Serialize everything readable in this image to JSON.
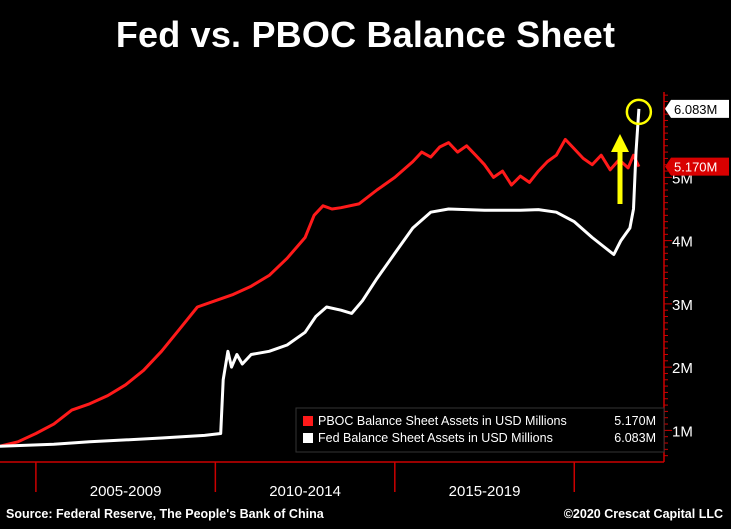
{
  "title": "Fed vs. PBOC Balance Sheet",
  "footer": {
    "source": "Source: Federal Reserve, The People's Bank of China",
    "copyright": "©2020 Crescat Capital LLC"
  },
  "colors": {
    "pboc": "#ff1a1a",
    "fed": "#ffffff",
    "annotation": "#ffff00",
    "axis": "#cc0000"
  },
  "chart_data": {
    "type": "line",
    "title": "Fed vs. PBOC Balance Sheet",
    "xlabel": "",
    "ylabel": "",
    "xlim": [
      2002.5,
      2021.0
    ],
    "ylim": [
      0.5,
      6.35
    ],
    "y_unit": "M",
    "y_ticks": [
      {
        "value": 1,
        "label": "1M"
      },
      {
        "value": 2,
        "label": "2M"
      },
      {
        "value": 3,
        "label": "3M"
      },
      {
        "value": 4,
        "label": "4M"
      },
      {
        "value": 5,
        "label": "5M"
      }
    ],
    "x_tick_positions": [
      2003.5,
      2008.5,
      2013.5,
      2018.5
    ],
    "x_period_labels": [
      {
        "center": 2006.0,
        "label": "2005-2009"
      },
      {
        "center": 2011.0,
        "label": "2010-2014"
      },
      {
        "center": 2016.0,
        "label": "2015-2019"
      }
    ],
    "last_value_flags": [
      {
        "series": "fed",
        "value": 6.083,
        "label": "6.083M"
      },
      {
        "series": "pboc",
        "value": 5.17,
        "label": "5.170M"
      }
    ],
    "legend_position": "bottom-right",
    "series": [
      {
        "key": "pboc",
        "name": "PBOC Balance Sheet Assets in USD Millions",
        "last_label": "5.170M",
        "color": "#ff1a1a",
        "x": [
          2002.5,
          2003.0,
          2003.5,
          2004.0,
          2004.5,
          2005.0,
          2005.5,
          2006.0,
          2006.5,
          2007.0,
          2007.5,
          2008.0,
          2008.5,
          2009.0,
          2009.5,
          2010.0,
          2010.5,
          2011.0,
          2011.25,
          2011.5,
          2011.75,
          2012.0,
          2012.5,
          2013.0,
          2013.5,
          2014.0,
          2014.25,
          2014.5,
          2014.75,
          2015.0,
          2015.25,
          2015.5,
          2015.75,
          2016.0,
          2016.25,
          2016.5,
          2016.75,
          2017.0,
          2017.25,
          2017.5,
          2017.75,
          2018.0,
          2018.25,
          2018.5,
          2018.75,
          2019.0,
          2019.25,
          2019.5,
          2019.75,
          2020.0,
          2020.15,
          2020.3
        ],
        "values": [
          0.75,
          0.82,
          0.95,
          1.1,
          1.32,
          1.42,
          1.55,
          1.72,
          1.95,
          2.25,
          2.6,
          2.95,
          3.05,
          3.15,
          3.28,
          3.45,
          3.72,
          4.05,
          4.4,
          4.55,
          4.5,
          4.52,
          4.58,
          4.8,
          5.0,
          5.25,
          5.4,
          5.32,
          5.48,
          5.55,
          5.4,
          5.5,
          5.35,
          5.2,
          5.0,
          5.1,
          4.88,
          5.02,
          4.92,
          5.1,
          5.25,
          5.35,
          5.6,
          5.45,
          5.3,
          5.2,
          5.35,
          5.12,
          5.28,
          5.15,
          5.35,
          5.17
        ]
      },
      {
        "key": "fed",
        "name": "Fed Balance Sheet Assets in USD Millions",
        "last_label": "6.083M",
        "color": "#ffffff",
        "x": [
          2002.5,
          2004.0,
          2005.0,
          2006.0,
          2007.0,
          2008.2,
          2008.65,
          2008.72,
          2008.85,
          2008.95,
          2009.1,
          2009.25,
          2009.5,
          2010.0,
          2010.5,
          2011.0,
          2011.3,
          2011.6,
          2012.0,
          2012.3,
          2012.6,
          2013.0,
          2013.5,
          2014.0,
          2014.5,
          2015.0,
          2016.0,
          2017.0,
          2017.5,
          2018.0,
          2018.5,
          2019.0,
          2019.6,
          2019.8,
          2019.95,
          2020.05,
          2020.15,
          2020.22,
          2020.3
        ],
        "values": [
          0.75,
          0.78,
          0.82,
          0.85,
          0.88,
          0.92,
          0.95,
          1.8,
          2.25,
          2.0,
          2.2,
          2.05,
          2.2,
          2.25,
          2.35,
          2.55,
          2.8,
          2.95,
          2.9,
          2.85,
          3.05,
          3.4,
          3.8,
          4.2,
          4.45,
          4.5,
          4.48,
          4.48,
          4.49,
          4.45,
          4.3,
          4.05,
          3.78,
          4.0,
          4.12,
          4.2,
          4.5,
          5.4,
          6.083
        ]
      }
    ]
  }
}
